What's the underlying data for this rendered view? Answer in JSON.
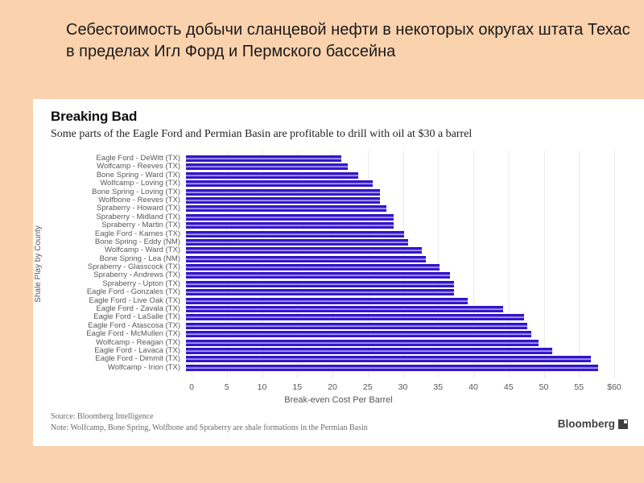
{
  "slide": {
    "title": "Себестоимость добычи сланцевой нефти в некоторых округах штата Техас в пределах Игл Форд и Пермского бассейна",
    "background_color": "#FAD2AD"
  },
  "chart_data": {
    "type": "bar",
    "orientation": "horizontal",
    "title": "Breaking Bad",
    "subtitle": "Some parts of the Eagle Ford and Permian Basin are profitable to drill with oil at $30 a barrel",
    "xlabel": "Break-even Cost Per Barrel",
    "ylabel": "Shale Play by County",
    "xlim": [
      0,
      60
    ],
    "xticks": [
      0,
      5,
      10,
      15,
      20,
      25,
      30,
      35,
      40,
      45,
      50,
      55,
      60
    ],
    "xtick_labels": [
      "0",
      "5",
      "10",
      "15",
      "20",
      "25",
      "30",
      "35",
      "40",
      "45",
      "50",
      "55",
      "$60"
    ],
    "grid": "vertical-on",
    "legend": "none",
    "bar_color": "#3516CD",
    "bar_highlight_color": "#ABA3F0",
    "categories": [
      "Eagle Ford - DeWitt (TX)",
      "Wolfcamp - Reeves (TX)",
      "Bone Spring - Ward (TX)",
      "Wolfcamp - Loving (TX)",
      "Bone Spring - Loving (TX)",
      "Wolfbone - Reeves (TX)",
      "Spraberry - Howard (TX)",
      "Spraberry - Midland (TX)",
      "Spraberry - Martin (TX)",
      "Eagle Ford - Karnes (TX)",
      "Bone Spring - Eddy (NM)",
      "Wolfcamp - Ward (TX)",
      "Bone Spring - Lea (NM)",
      "Spraberry - Glasscock (TX)",
      "Spraberry - Andrews (TX)",
      "Spraberry - Upton (TX)",
      "Eagle Ford - Gonzales (TX)",
      "Eagle Ford - Live Oak (TX)",
      "Eagle Ford - Zavala (TX)",
      "Eagle Ford - LaSalle (TX)",
      "Eagle Ford - Atascosa (TX)",
      "Eagle Ford - McMullen (TX)",
      "Wolfcamp - Reagan (TX)",
      "Eagle Ford - Lavaca (TX)",
      "Eagle Ford - Dimmit (TX)",
      "Wolfcamp - Irion (TX)"
    ],
    "values": [
      22,
      23,
      24.5,
      26.5,
      27.5,
      27.5,
      28.5,
      29.5,
      29.5,
      31,
      31.5,
      33.5,
      34,
      36,
      37.5,
      38,
      38,
      40,
      45,
      48,
      48.5,
      49,
      50,
      52,
      57.5,
      58.5
    ]
  },
  "footer": {
    "source_line": "Source: Bloomberg Intelligence",
    "note_line": "Note: Wolfcamp, Bone Spring, Wolfbone and Spraberry are shale formations in the Permian Basin",
    "brand": "Bloomberg"
  }
}
